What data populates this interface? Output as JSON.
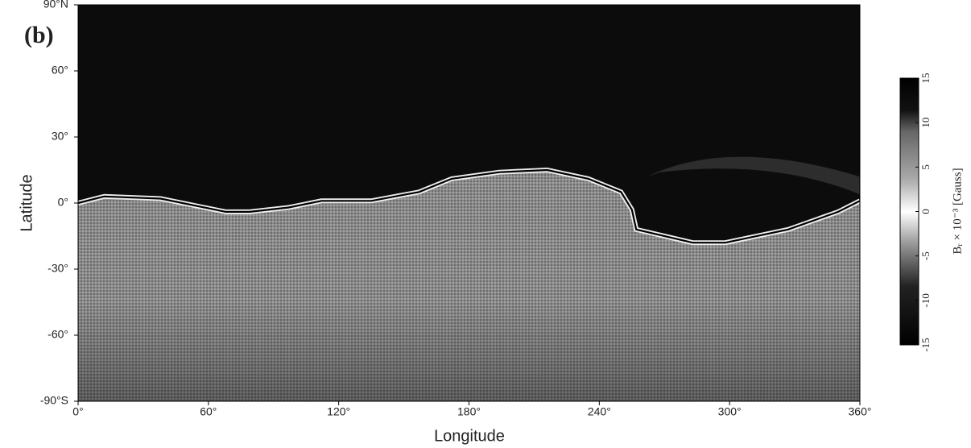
{
  "chart_data": {
    "type": "contour",
    "panel_label": "(b)",
    "xlabel": "Longitude",
    "ylabel": "Latitude",
    "xlim": [
      0,
      360
    ],
    "xticks": [
      {
        "value": 0,
        "label": "0°"
      },
      {
        "value": 60,
        "label": "60°"
      },
      {
        "value": 120,
        "label": "120°"
      },
      {
        "value": 180,
        "label": "180°"
      },
      {
        "value": 240,
        "label": "240°"
      },
      {
        "value": 300,
        "label": "300°"
      },
      {
        "value": 360,
        "label": "360°"
      }
    ],
    "ylim": [
      -90,
      90
    ],
    "yticks": [
      {
        "value": -90,
        "label": "-90°S"
      },
      {
        "value": -60,
        "label": "-60°"
      },
      {
        "value": -30,
        "label": "-30°"
      },
      {
        "value": 0,
        "label": "0°"
      },
      {
        "value": 30,
        "label": "30°"
      },
      {
        "value": 60,
        "label": "60°"
      },
      {
        "value": 90,
        "label": "90°N"
      }
    ],
    "line": {
      "color": "#000000",
      "x": [
        0,
        12,
        38,
        68,
        79,
        97,
        112,
        135,
        157,
        172,
        194,
        216,
        235,
        250,
        255,
        257,
        283,
        298,
        327,
        350,
        360
      ],
      "values": [
        0,
        3,
        2,
        -4,
        -4,
        -2,
        1,
        1,
        5,
        11,
        14,
        15,
        11,
        5,
        -3,
        -12,
        -18,
        -18,
        -12,
        -4,
        1
      ]
    },
    "colorbar_label": "Bᵣ × 10⁻³ [Gauss]",
    "clim": [
      -15,
      15
    ],
    "cticks": [
      -15,
      -10,
      -5,
      0,
      5,
      10,
      15
    ]
  }
}
